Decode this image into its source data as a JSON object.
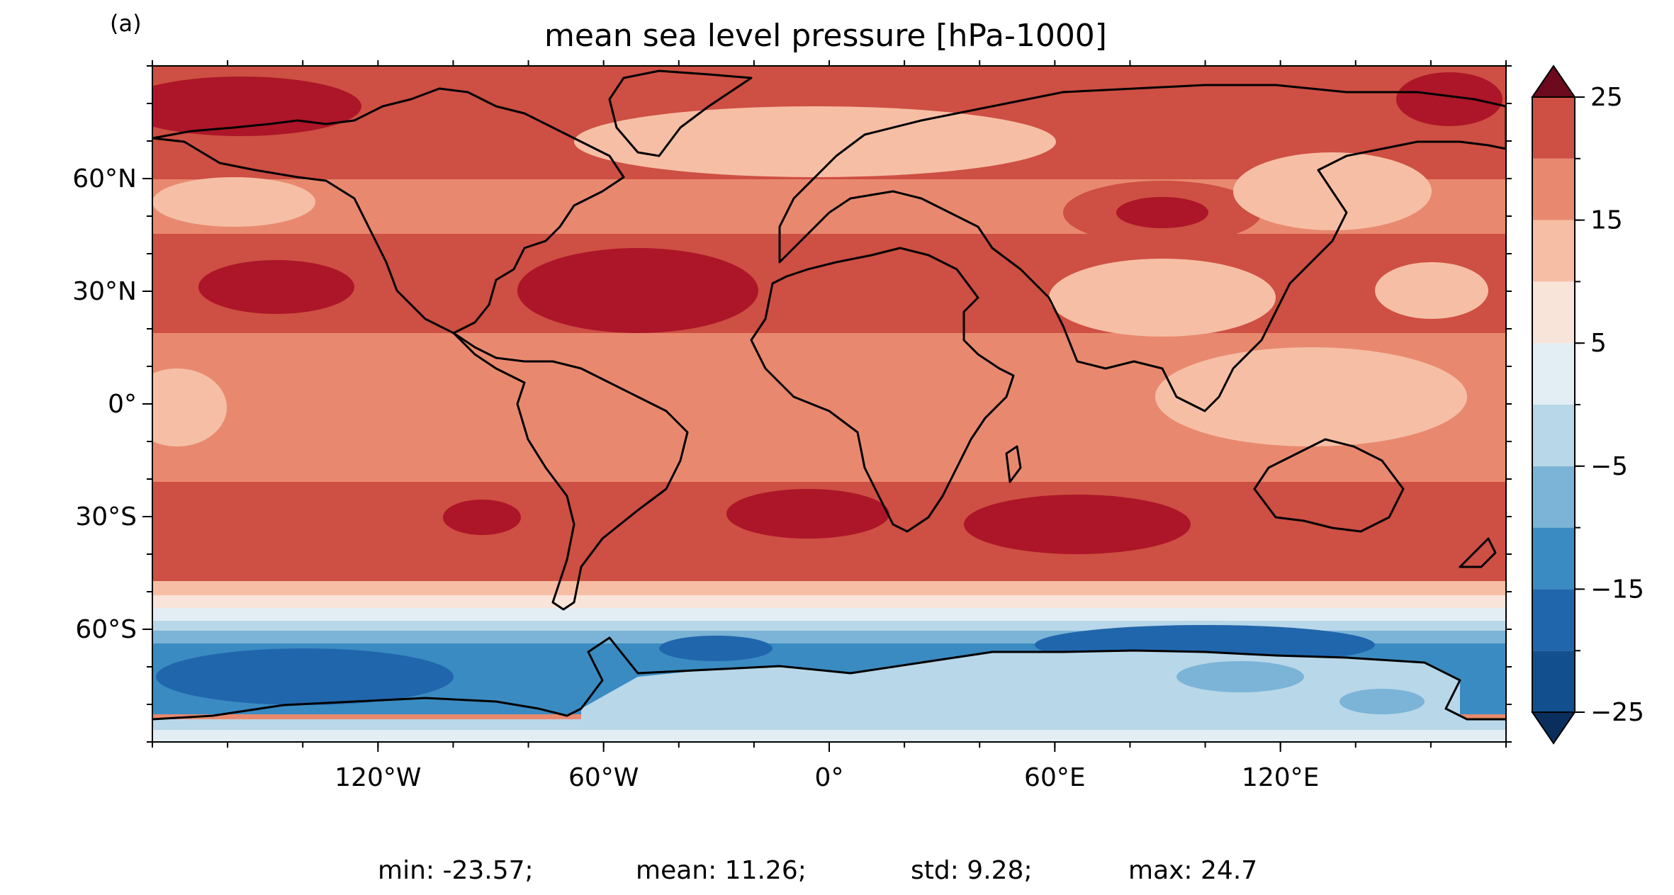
{
  "panel_label": "(a)",
  "title": "mean sea level pressure [hPa-1000]",
  "stats": {
    "min": "min: -23.57;",
    "mean": "mean: 11.26;",
    "std": "std: 9.28;",
    "max": "max: 24.7"
  },
  "map": {
    "projection": "PlateCarree",
    "lon_range": [
      -180,
      180
    ],
    "lat_range": [
      -90,
      90
    ],
    "lat_ticks": [
      {
        "value": 60,
        "label": "60°N"
      },
      {
        "value": 30,
        "label": "30°N"
      },
      {
        "value": 0,
        "label": "0°"
      },
      {
        "value": -30,
        "label": "30°S"
      },
      {
        "value": -60,
        "label": "60°S"
      }
    ],
    "lon_ticks": [
      {
        "value": -120,
        "label": "120°W"
      },
      {
        "value": -60,
        "label": "60°W"
      },
      {
        "value": 0,
        "label": "0°"
      },
      {
        "value": 60,
        "label": "60°E"
      },
      {
        "value": 120,
        "label": "120°E"
      }
    ],
    "coastlines": true
  },
  "colorbar": {
    "colormap": "RdBu_r",
    "extend": "both",
    "levels": [
      -25,
      -20,
      -15,
      -10,
      -5,
      0,
      5,
      10,
      15,
      20,
      25
    ],
    "tick_values": [
      25,
      15,
      5,
      -5,
      -15,
      -25
    ],
    "tick_labels": [
      "25",
      "15",
      "5",
      "−5",
      "−15",
      "−25"
    ],
    "colors": [
      "#124f8f",
      "#2066ac",
      "#3a8bc2",
      "#7bb4d6",
      "#b8d7e9",
      "#e3edf4",
      "#f9e4da",
      "#f6bfa5",
      "#e8896f",
      "#ce4f43",
      "#ad1628"
    ],
    "under_color": "#0a2f5c",
    "over_color": "#6d0a1e"
  }
}
